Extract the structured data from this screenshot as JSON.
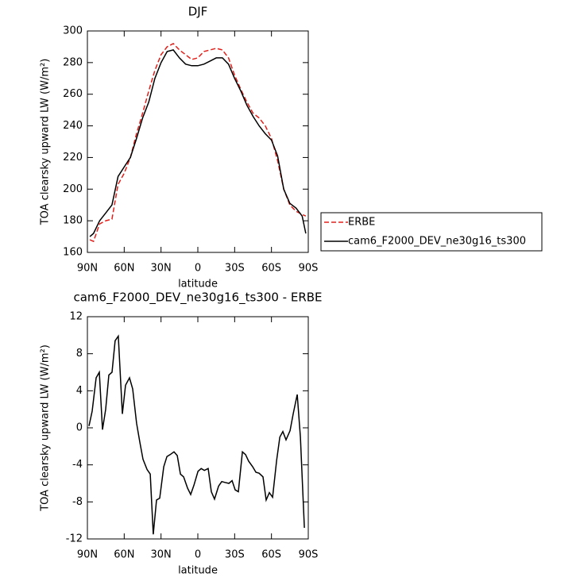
{
  "chart_data": [
    {
      "type": "line",
      "title": "DJF",
      "xlabel": "latitude",
      "ylabel": "TOA clearsky upward LW (W/m²)",
      "x": [
        88,
        85,
        80,
        75,
        70,
        65,
        60,
        55,
        50,
        45,
        40,
        35,
        30,
        25,
        20,
        15,
        10,
        5,
        0,
        -5,
        -10,
        -15,
        -20,
        -25,
        -30,
        -35,
        -40,
        -45,
        -50,
        -55,
        -60,
        -65,
        -70,
        -75,
        -80,
        -85,
        -88
      ],
      "series": [
        {
          "name": "ERBE",
          "color": "#e0201b",
          "style": "dashed",
          "values": [
            168,
            167,
            178,
            180,
            181,
            203,
            210,
            220,
            235,
            248,
            262,
            275,
            285,
            290,
            292,
            288,
            285,
            282,
            283,
            287,
            288,
            289,
            288,
            283,
            272,
            263,
            255,
            248,
            245,
            240,
            232,
            218,
            200,
            190,
            186,
            184,
            183
          ]
        },
        {
          "name": "cam6_F2000_DEV_ne30g16_ts300",
          "color": "#000000",
          "style": "solid",
          "values": [
            170,
            172,
            180,
            185,
            190,
            208,
            214,
            220,
            232,
            245,
            255,
            270,
            280,
            287,
            288,
            283,
            279,
            278,
            278,
            279,
            281,
            283,
            283,
            279,
            270,
            262,
            253,
            246,
            240,
            235,
            231,
            221,
            200,
            191,
            188,
            183,
            172
          ]
        }
      ],
      "xlim": [
        90,
        -90
      ],
      "xticks": [
        {
          "value": 90,
          "label": "90N"
        },
        {
          "value": 60,
          "label": "60N"
        },
        {
          "value": 30,
          "label": "30N"
        },
        0,
        {
          "value": -30,
          "label": "30S"
        },
        {
          "value": -60,
          "label": "60S"
        },
        {
          "value": -90,
          "label": "90S"
        }
      ],
      "ylim": [
        160,
        300
      ],
      "yticks": [
        160,
        180,
        200,
        220,
        240,
        260,
        280,
        300
      ]
    },
    {
      "type": "line",
      "title": "cam6_F2000_DEV_ne30g16_ts300 - ERBE",
      "xlabel": "latitude",
      "ylabel": "TOA clearsky upward LW (W/m²)",
      "x": [
        88.7,
        86.1,
        82.9,
        80.3,
        77.7,
        75.1,
        72.5,
        69.9,
        67.4,
        64.8,
        61.5,
        58.9,
        55.7,
        53.1,
        49.9,
        47.3,
        44.7,
        41.4,
        38.8,
        36.3,
        33.7,
        31.1,
        27.8,
        25.2,
        22.6,
        19.4,
        16.8,
        14.2,
        11.6,
        8.4,
        5.8,
        3.2,
        -0.1,
        -2.7,
        -5.3,
        -8.4,
        -11.0,
        -13.6,
        -16.9,
        -19.5,
        -22.1,
        -25.3,
        -27.9,
        -30.4,
        -33.0,
        -36.3,
        -38.9,
        -41.4,
        -44.7,
        -47.3,
        -49.9,
        -53.1,
        -55.7,
        -58.3,
        -60.9,
        -64.2,
        -66.8,
        -69.3,
        -71.9,
        -75.2,
        -77.7,
        -81.0,
        -83.6,
        -86.8
      ],
      "values": [
        0.2,
        1.8,
        5.4,
        6,
        -0.2,
        2,
        5.7,
        6,
        9.4,
        9.9,
        1.5,
        4.6,
        5.4,
        4.2,
        0.5,
        -1.5,
        -3.4,
        -4.5,
        -5,
        -11.5,
        -7.8,
        -7.6,
        -4.2,
        -3.1,
        -2.9,
        -2.6,
        -3,
        -5,
        -5.3,
        -6.5,
        -7.2,
        -6.2,
        -4.7,
        -4.4,
        -4.6,
        -4.4,
        -6.9,
        -7.7,
        -6.3,
        -5.8,
        -5.9,
        -6,
        -5.7,
        -6.7,
        -6.9,
        -2.6,
        -2.9,
        -3.6,
        -4.2,
        -4.8,
        -4.9,
        -5.3,
        -7.8,
        -7,
        -7.5,
        -3.5,
        -1,
        -0.4,
        -1.3,
        -0.3,
        1.5,
        3.6,
        -1,
        -10.8
      ],
      "color": "#000000",
      "xlim": [
        90,
        -90
      ],
      "xticks": [
        {
          "value": 90,
          "label": "90N"
        },
        {
          "value": 60,
          "label": "60N"
        },
        {
          "value": 30,
          "label": "30N"
        },
        0,
        {
          "value": -30,
          "label": "30S"
        },
        {
          "value": -60,
          "label": "60S"
        },
        {
          "value": -90,
          "label": "90S"
        }
      ],
      "ylim": [
        -12,
        12
      ],
      "yticks": [
        -12,
        -8,
        -4,
        0,
        4,
        8,
        12
      ]
    }
  ]
}
